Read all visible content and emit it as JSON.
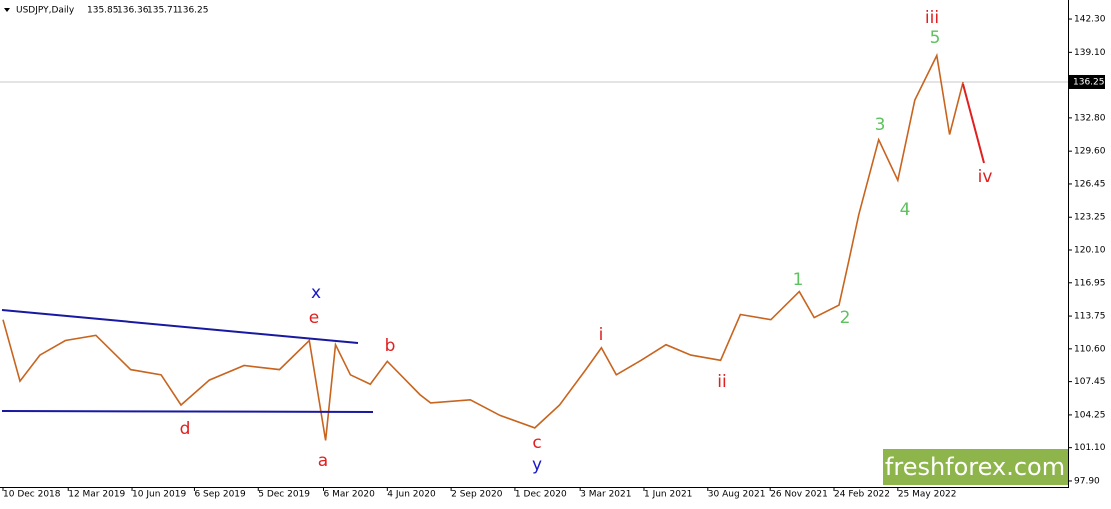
{
  "chart_data": {
    "type": "line",
    "title": "USDJPY,Daily",
    "ohlc": [
      135.85,
      136.36,
      135.71,
      136.25
    ],
    "last_price": 136.25,
    "watermark": "freshforex.com",
    "color": "#c8641e",
    "x": [
      "10 Dec 2018",
      "3 Jan 2019",
      "31 Jan 2019",
      "8 Mar 2019",
      "20 Apr 2019",
      "8 Jun 2019",
      "21 Jul 2019",
      "18 Aug 2019",
      "27 Sep 2019",
      "15 Nov 2019",
      "4 Jan 2020",
      "15 Feb 2020",
      "9 Mar 2020",
      "23 Mar 2020",
      "13 Apr 2020",
      "11 May 2020",
      "4 Jun 2020",
      "20 Jul 2020",
      "4 Aug 2020",
      "29 Sep 2020",
      "10 Nov 2020",
      "29 Dec 2020",
      "2 Feb 2021",
      "11 Mar 2021",
      "2 Apr 2021",
      "23 Apr 2021",
      "28 May 2021",
      "2 Jul 2021",
      "6 Aug 2021",
      "17 Sep 2021",
      "15 Oct 2021",
      "27 Nov 2021",
      "6 Jan 2022",
      "27 Jan 2022",
      "3 Mar 2022",
      "17 Mar 2022",
      "31 Mar 2022",
      "28 Apr 2022",
      "25 May 2022",
      "18 Jun 2022",
      "19 Jul 2022",
      "6 Aug 2022",
      "25 Aug 2022"
    ],
    "values": [
      113.4,
      107.5,
      110,
      111.4,
      111.9,
      108.6,
      108.1,
      105.2,
      107.6,
      109,
      108.6,
      111.4,
      101.8,
      111,
      108.1,
      107.2,
      109.4,
      106.2,
      105.4,
      105.7,
      104.2,
      103,
      105.2,
      108.6,
      110.7,
      108.1,
      109.5,
      111,
      110,
      109.5,
      113.9,
      113.4,
      116.1,
      113.6,
      114.8,
      119.1,
      123.5,
      130.7,
      126.8,
      134.5,
      138.8,
      131.2,
      136.25
    ],
    "xlim": [
      "10 Dec 2018",
      "20 Jan 2023"
    ],
    "xticks": [
      "10 Dec 2018",
      "12 Mar 2019",
      "10 Jun 2019",
      "6 Sep 2019",
      "5 Dec 2019",
      "6 Mar 2020",
      "4 Jun 2020",
      "2 Sep 2020",
      "1 Dec 2020",
      "3 Mar 2021",
      "1 Jun 2021",
      "30 Aug 2021",
      "26 Nov 2021",
      "24 Feb 2022",
      "25 May 2022"
    ],
    "ylim": [
      97.32,
      143.65
    ],
    "yticks": [
      {
        "value": 142.3,
        "label": "142.30"
      },
      {
        "value": 139.1,
        "label": "139.10"
      },
      {
        "value": 132.8,
        "label": "132.80"
      },
      {
        "value": 129.6,
        "label": "129.60"
      },
      {
        "value": 126.45,
        "label": "126.45"
      },
      {
        "value": 123.25,
        "label": "123.25"
      },
      {
        "value": 120.1,
        "label": "120.10"
      },
      {
        "value": 116.95,
        "label": "116.95"
      },
      {
        "value": 113.75,
        "label": "113.75"
      },
      {
        "value": 110.6,
        "label": "110.60"
      },
      {
        "value": 107.45,
        "label": "107.45"
      },
      {
        "value": 104.25,
        "label": "104.25"
      },
      {
        "value": 101.1,
        "label": "101.10"
      },
      {
        "value": 97.9,
        "label": "97.90"
      }
    ],
    "annotations": [
      {
        "text": "iii",
        "color": "#e02020"
      },
      {
        "text": "5",
        "color": "#5ec25e"
      },
      {
        "text": "3",
        "color": "#5ec25e"
      },
      {
        "text": "4",
        "color": "#5ec25e"
      },
      {
        "text": "iv",
        "color": "#e02020"
      },
      {
        "text": "1",
        "color": "#5ec25e"
      },
      {
        "text": "2",
        "color": "#5ec25e"
      },
      {
        "text": "ii",
        "color": "#e02020"
      },
      {
        "text": "i",
        "color": "#e02020"
      },
      {
        "text": "c",
        "color": "#e02020"
      },
      {
        "text": "y",
        "color": "#1818c8"
      },
      {
        "text": "b",
        "color": "#e02020"
      },
      {
        "text": "e",
        "color": "#e02020"
      },
      {
        "text": "x",
        "color": "#1818c8"
      },
      {
        "text": "a",
        "color": "#e02020"
      },
      {
        "text": "d",
        "color": "#e02020"
      }
    ]
  }
}
